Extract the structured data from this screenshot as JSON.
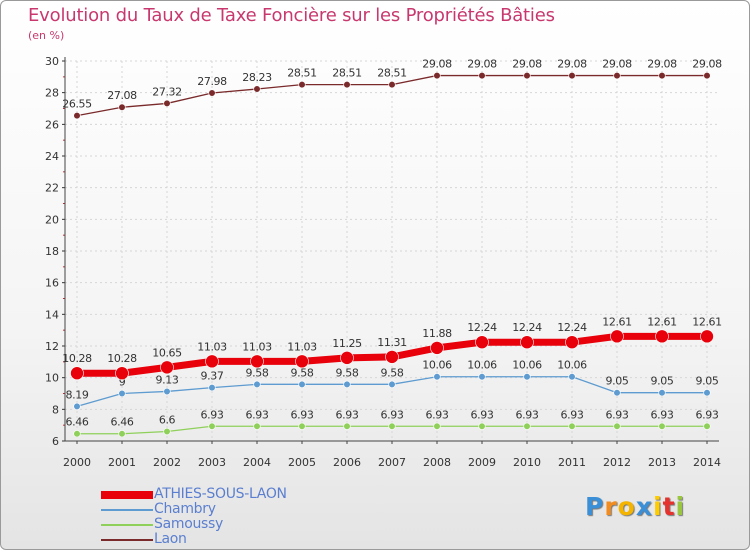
{
  "title": "Evolution du Taux de Taxe Foncière sur les Propriétés Bâties",
  "unit": "(en %)",
  "logo": {
    "chars": [
      "P",
      "r",
      "o",
      "x",
      "i",
      "t",
      "i"
    ],
    "colors": [
      "#3a8fd6",
      "#f28c1e",
      "#f5b400",
      "#3a8fd6",
      "#ffcc00",
      "#e5322d",
      "#9bc73e"
    ]
  },
  "chart_data": {
    "type": "line",
    "title": "Evolution du Taux de Taxe Foncière sur les Propriétés Bâties",
    "ylabel": "(en %)",
    "xlabel": "",
    "ylim": [
      6,
      30
    ],
    "yticks": [
      "6",
      "8",
      "10",
      "12",
      "14",
      "16",
      "18",
      "20",
      "22",
      "24",
      "26",
      "28",
      "30"
    ],
    "categories": [
      "2000",
      "2001",
      "2002",
      "2003",
      "2004",
      "2005",
      "2006",
      "2007",
      "2008",
      "2009",
      "2010",
      "2011",
      "2012",
      "2013",
      "2014"
    ],
    "series": [
      {
        "name": "Laon",
        "color": "#7a2a2a",
        "line_width": 1.3,
        "marker": 3.3,
        "values": [
          26.55,
          27.08,
          27.32,
          27.98,
          28.23,
          28.51,
          28.51,
          28.51,
          29.08,
          29.08,
          29.08,
          29.08,
          29.08,
          29.08,
          29.08
        ],
        "labels": [
          "26.55",
          "27.08",
          "27.32",
          "27.98",
          "28.23",
          "28.51",
          "28.51",
          "28.51",
          "29.08",
          "29.08",
          "29.08",
          "29.08",
          "29.08",
          "29.08",
          "29.08"
        ]
      },
      {
        "name": "Samoussy",
        "color": "#8fd05a",
        "line_width": 1.3,
        "marker": 3.3,
        "values": [
          6.46,
          6.46,
          6.6,
          6.93,
          6.93,
          6.93,
          6.93,
          6.93,
          6.93,
          6.93,
          6.93,
          6.93,
          6.93,
          6.93,
          6.93
        ],
        "labels": [
          "6.46",
          "6.46",
          "6.6",
          "6.93",
          "6.93",
          "6.93",
          "6.93",
          "6.93",
          "6.93",
          "6.93",
          "6.93",
          "6.93",
          "6.93",
          "6.93",
          "6.93"
        ]
      },
      {
        "name": "Chambry",
        "color": "#5d9bd0",
        "line_width": 1.3,
        "marker": 3.3,
        "values": [
          8.19,
          9.0,
          9.13,
          9.37,
          9.58,
          9.58,
          9.58,
          9.58,
          10.06,
          10.06,
          10.06,
          10.06,
          9.05,
          9.05,
          9.05
        ],
        "labels": [
          "8.19",
          "9",
          "9.13",
          "9.37",
          "9.58",
          "9.58",
          "9.58",
          "9.58",
          "10.06",
          "10.06",
          "10.06",
          "10.06",
          "9.05",
          "9.05",
          "9.05"
        ]
      },
      {
        "name": "ATHIES-SOUS-LAON",
        "color": "#e8000a",
        "line_width": 7,
        "marker": 6.5,
        "values": [
          10.28,
          10.28,
          10.65,
          11.03,
          11.03,
          11.03,
          11.25,
          11.31,
          11.88,
          12.24,
          12.24,
          12.24,
          12.61,
          12.61,
          12.61
        ],
        "labels": [
          "10.28",
          "10.28",
          "10.65",
          "11.03",
          "11.03",
          "11.03",
          "11.25",
          "11.31",
          "11.88",
          "12.24",
          "12.24",
          "12.24",
          "12.61",
          "12.61",
          "12.61"
        ]
      }
    ],
    "legend": [
      {
        "name": "ATHIES-SOUS-LAON",
        "color": "#e8000a",
        "thickness": 8
      },
      {
        "name": "Chambry",
        "color": "#5d9bd0",
        "thickness": 2
      },
      {
        "name": "Samoussy",
        "color": "#8fd05a",
        "thickness": 2
      },
      {
        "name": "Laon",
        "color": "#7a2a2a",
        "thickness": 2
      }
    ]
  }
}
